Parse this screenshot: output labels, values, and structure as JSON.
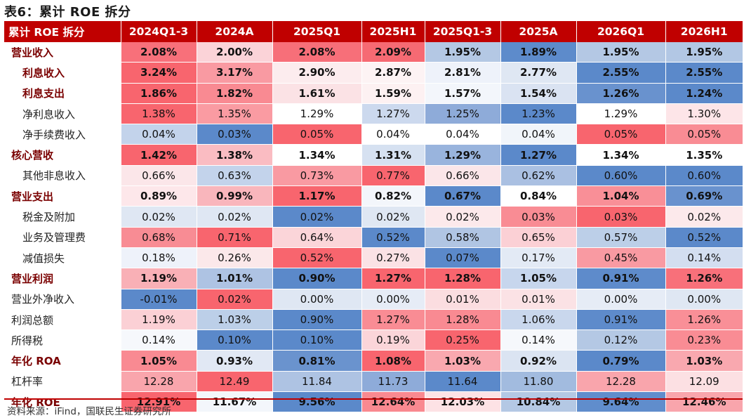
{
  "title": "表6：累计 ROE 拆分",
  "header": [
    "累计 ROE 拆分",
    "2024Q1-3",
    "2024A",
    "2025Q1",
    "2025H1",
    "2025Q1-3",
    "2025A",
    "2026Q1",
    "2026H1"
  ],
  "rows": [
    {
      "label": "营业收入",
      "level": 0,
      "bold": true,
      "values": [
        "2.08%",
        "2.00%",
        "2.08%",
        "2.09%",
        "1.95%",
        "1.89%",
        "1.95%",
        "1.95%"
      ],
      "colors": [
        "#f8707a",
        "#fbd3d8",
        "#f76f79",
        "#f66a73",
        "#b4c8e4",
        "#5d8bcb",
        "#b4c8e4",
        "#b2c7e4"
      ]
    },
    {
      "label": "利息收入",
      "level": 1,
      "bold": true,
      "values": [
        "3.24%",
        "3.17%",
        "2.90%",
        "2.87%",
        "2.81%",
        "2.77%",
        "2.55%",
        "2.55%"
      ],
      "colors": [
        "#f8656e",
        "#f99aa2",
        "#fcecee",
        "#fdf3f4",
        "#eef2fa",
        "#dfe7f3",
        "#5b89ca",
        "#5b89ca"
      ]
    },
    {
      "label": "利息支出",
      "level": 1,
      "bold": true,
      "values": [
        "1.86%",
        "1.82%",
        "1.61%",
        "1.59%",
        "1.57%",
        "1.54%",
        "1.26%",
        "1.24%"
      ],
      "colors": [
        "#f8656e",
        "#f98a92",
        "#fbe2e5",
        "#fdf1f2",
        "#f3f6fb",
        "#dae3f2",
        "#6992ce",
        "#5b89ca"
      ]
    },
    {
      "label": "净利息收入",
      "level": 1,
      "bold": false,
      "values": [
        "1.38%",
        "1.35%",
        "1.29%",
        "1.27%",
        "1.25%",
        "1.23%",
        "1.29%",
        "1.30%"
      ],
      "colors": [
        "#f8656e",
        "#fa9ba2",
        "#ffffff",
        "#ccd9ee",
        "#8eabd9",
        "#5b89ca",
        "#ffffff",
        "#fde5e8"
      ]
    },
    {
      "label": "净手续费收入",
      "level": 1,
      "bold": false,
      "values": [
        "0.04%",
        "0.03%",
        "0.05%",
        "0.04%",
        "0.04%",
        "0.04%",
        "0.05%",
        "0.05%"
      ],
      "colors": [
        "#c3d3eb",
        "#5b89ca",
        "#f8656e",
        "#ffffff",
        "#ffffff",
        "#f1f5fa",
        "#f8656e",
        "#f98c94"
      ]
    },
    {
      "label": "核心营收",
      "level": 0,
      "bold": true,
      "values": [
        "1.42%",
        "1.38%",
        "1.34%",
        "1.31%",
        "1.29%",
        "1.27%",
        "1.34%",
        "1.35%"
      ],
      "colors": [
        "#f8656e",
        "#fabcc2",
        "#ffffff",
        "#d6e1f1",
        "#99b4dd",
        "#5b89ca",
        "#ffffff",
        "#ffffff"
      ]
    },
    {
      "label": "其他非息收入",
      "level": 1,
      "bold": false,
      "values": [
        "0.66%",
        "0.63%",
        "0.73%",
        "0.77%",
        "0.66%",
        "0.62%",
        "0.60%",
        "0.60%"
      ],
      "colors": [
        "#fbe6e9",
        "#c3d3eb",
        "#f99aa2",
        "#f8656e",
        "#fbe6e9",
        "#aac0e2",
        "#5b89ca",
        "#5b89ca"
      ]
    },
    {
      "label": "营业支出",
      "level": 0,
      "bold": true,
      "values": [
        "0.89%",
        "0.99%",
        "1.17%",
        "0.82%",
        "0.67%",
        "0.84%",
        "1.04%",
        "0.69%"
      ],
      "colors": [
        "#fde7ea",
        "#f9b6bc",
        "#f8656e",
        "#f3f6fb",
        "#5b89ca",
        "#ffffff",
        "#f98f97",
        "#6992ce"
      ]
    },
    {
      "label": "税金及附加",
      "level": 1,
      "bold": false,
      "values": [
        "0.02%",
        "0.02%",
        "0.02%",
        "0.02%",
        "0.02%",
        "0.03%",
        "0.03%",
        "0.02%"
      ],
      "colors": [
        "#dfe7f3",
        "#dfe7f3",
        "#5b89ca",
        "#dfe7f3",
        "#fce9eb",
        "#f98c94",
        "#f8656e",
        "#fce9eb"
      ]
    },
    {
      "label": "业务及管理费",
      "level": 1,
      "bold": false,
      "values": [
        "0.68%",
        "0.71%",
        "0.64%",
        "0.52%",
        "0.58%",
        "0.65%",
        "0.57%",
        "0.52%"
      ],
      "colors": [
        "#f88c94",
        "#f8656e",
        "#fbd5d9",
        "#5b89ca",
        "#b0c5e3",
        "#fbd0d5",
        "#bccfe8",
        "#5b89ca"
      ]
    },
    {
      "label": "减值损失",
      "level": 1,
      "bold": false,
      "values": [
        "0.18%",
        "0.26%",
        "0.52%",
        "0.27%",
        "0.07%",
        "0.17%",
        "0.45%",
        "0.14%"
      ],
      "colors": [
        "#eef2fa",
        "#fbe8ea",
        "#f8656e",
        "#fbe2e5",
        "#5b89ca",
        "#e3eaf5",
        "#f99aa2",
        "#d3def0"
      ]
    },
    {
      "label": "营业利润",
      "level": 0,
      "bold": true,
      "values": [
        "1.19%",
        "1.01%",
        "0.90%",
        "1.27%",
        "1.28%",
        "1.05%",
        "0.91%",
        "1.26%"
      ],
      "colors": [
        "#f9b0b6",
        "#aec3e3",
        "#5b89ca",
        "#f8656e",
        "#f8656e",
        "#c7d6ed",
        "#5e8bcb",
        "#f8707a"
      ]
    },
    {
      "label": "营业外净收入",
      "level": 0,
      "bold": false,
      "values": [
        "-0.01%",
        "0.02%",
        "0.00%",
        "0.00%",
        "0.01%",
        "0.01%",
        "0.00%",
        "0.00%"
      ],
      "colors": [
        "#5b89ca",
        "#f8656e",
        "#dfe7f3",
        "#e6ecf6",
        "#fbdde0",
        "#fbe2e5",
        "#e6ecf6",
        "#dfe7f3"
      ]
    },
    {
      "label": "利润总额",
      "level": 0,
      "bold": false,
      "values": [
        "1.19%",
        "1.03%",
        "0.90%",
        "1.27%",
        "1.28%",
        "1.06%",
        "0.91%",
        "1.26%"
      ],
      "colors": [
        "#fbd0d5",
        "#bccfe8",
        "#5b89ca",
        "#f98c94",
        "#f98a92",
        "#c9d7ed",
        "#5e8bcb",
        "#f98f97"
      ]
    },
    {
      "label": "所得税",
      "level": 0,
      "bold": false,
      "values": [
        "0.14%",
        "0.10%",
        "0.10%",
        "0.19%",
        "0.25%",
        "0.14%",
        "0.12%",
        "0.23%"
      ],
      "colors": [
        "#f6f8fc",
        "#5b89ca",
        "#5b89ca",
        "#fbd5d9",
        "#f8656e",
        "#f6f8fc",
        "#b4c8e4",
        "#f98c94"
      ]
    },
    {
      "label": "年化 ROA",
      "level": 0,
      "bold": true,
      "values": [
        "1.05%",
        "0.93%",
        "0.81%",
        "1.08%",
        "1.03%",
        "0.92%",
        "0.79%",
        "1.03%"
      ],
      "colors": [
        "#f98a92",
        "#e1e8f4",
        "#6a93ce",
        "#f8656e",
        "#f9a8af",
        "#dbe4f2",
        "#5b89ca",
        "#f9a8af"
      ]
    },
    {
      "label": "杠杆率",
      "level": 0,
      "bold": false,
      "values": [
        "12.28",
        "12.49",
        "11.84",
        "11.73",
        "11.64",
        "11.80",
        "12.28",
        "12.09"
      ],
      "colors": [
        "#f9a5ac",
        "#f8656e",
        "#aec3e3",
        "#8eabd9",
        "#5b89ca",
        "#a2bbdf",
        "#f9a5ac",
        "#fce0e3"
      ]
    },
    {
      "label": "年化 ROE",
      "level": 0,
      "bold": true,
      "values": [
        "12.91%",
        "11.67%",
        "9.56%",
        "12.64%",
        "12.03%",
        "10.84%",
        "9.64%",
        "12.46%"
      ],
      "colors": [
        "#f8656e",
        "#f3f6fb",
        "#5b89ca",
        "#f98990",
        "#fde2e5",
        "#b4c8e4",
        "#608dcc",
        "#f9a5ac"
      ]
    }
  ],
  "source": "资料来源：iFind，国联民生证券研究所"
}
